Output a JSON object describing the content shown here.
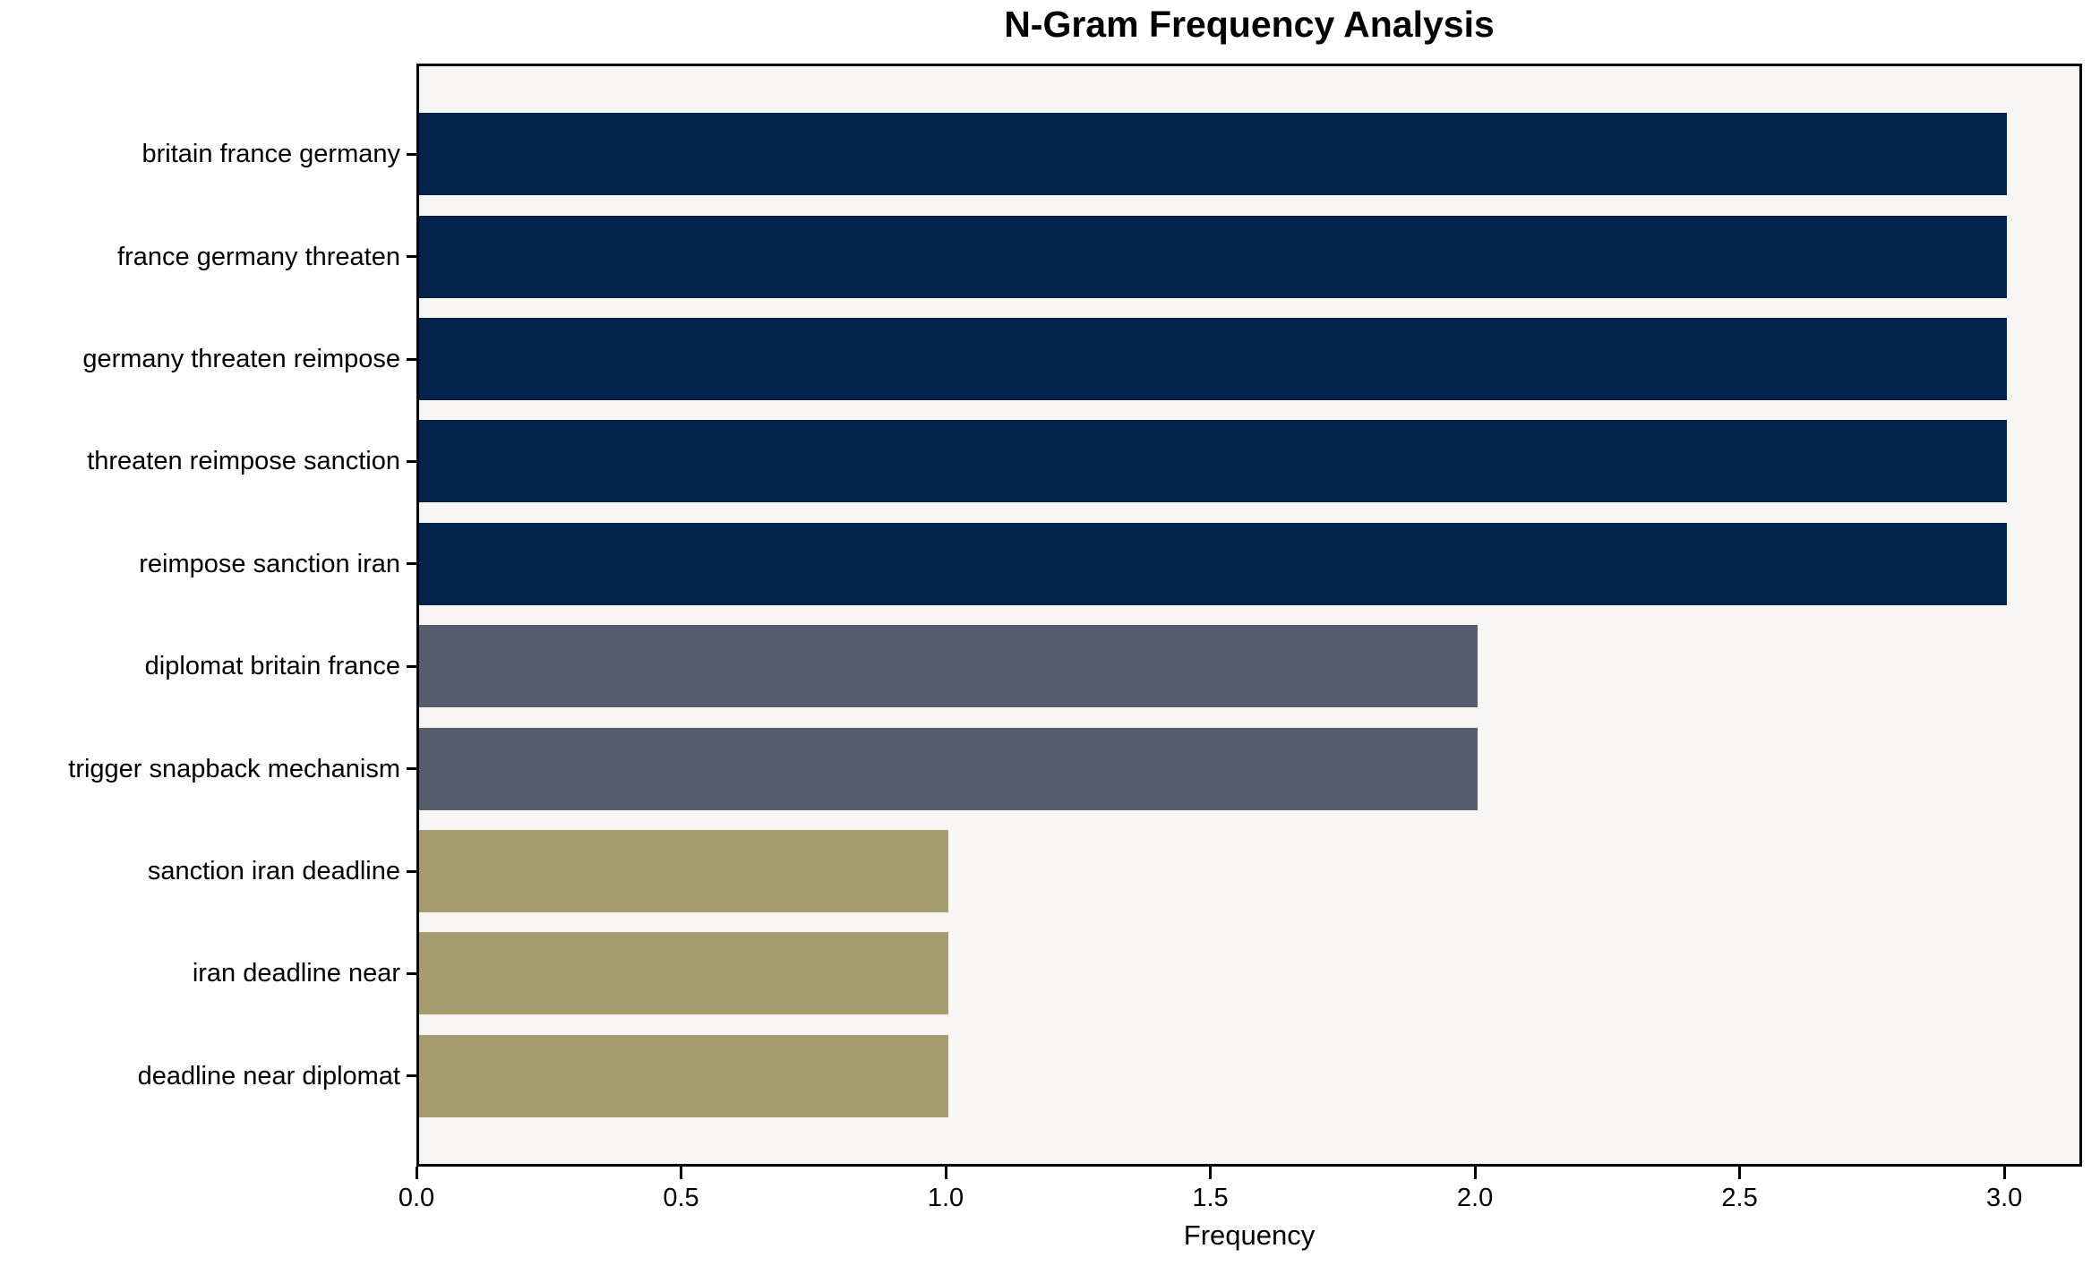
{
  "chart_data": {
    "type": "bar",
    "orientation": "horizontal",
    "title": "N-Gram Frequency Analysis",
    "xlabel": "Frequency",
    "ylabel": "",
    "categories": [
      "britain france germany",
      "france germany threaten",
      "germany threaten reimpose",
      "threaten reimpose sanction",
      "reimpose sanction iran",
      "diplomat britain france",
      "trigger snapback mechanism",
      "sanction iran deadline",
      "iran deadline near",
      "deadline near diplomat"
    ],
    "values": [
      3,
      3,
      3,
      3,
      3,
      2,
      2,
      1,
      1,
      1
    ],
    "bar_colors": [
      "#03234C",
      "#03234C",
      "#03234C",
      "#03234C",
      "#03234C",
      "#565D6C",
      "#565D6C",
      "#A59C70",
      "#A59C70",
      "#A59C70"
    ],
    "x_tick_labels": [
      "0.0",
      "0.5",
      "1.0",
      "1.5",
      "2.0",
      "2.5",
      "3.0"
    ],
    "x_tick_values": [
      0,
      0.5,
      1,
      1.5,
      2,
      2.5,
      3
    ],
    "xlim": [
      0,
      3.147
    ],
    "grid": false,
    "legend": null,
    "colors": {
      "plot_background": "#F7F6F4",
      "figure_background": "#FFFFFF",
      "axis": "#000000",
      "text": "#000000",
      "bar_high": "#03234C",
      "bar_mid": "#565D6C",
      "bar_low": "#A59C70"
    }
  }
}
